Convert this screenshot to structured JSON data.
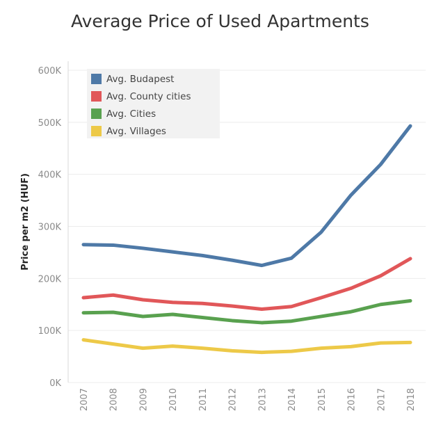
{
  "chart_data": {
    "type": "line",
    "title": "Average Price of Used Apartments",
    "xlabel": "",
    "ylabel": "Price per m2 (HUF)",
    "categories": [
      "2007",
      "2008",
      "2009",
      "2010",
      "2011",
      "2012",
      "2013",
      "2014",
      "2015",
      "2016",
      "2017",
      "2018"
    ],
    "ylim": [
      0,
      600000
    ],
    "yticks": [
      0,
      100000,
      200000,
      300000,
      400000,
      500000,
      600000
    ],
    "ytick_labels": [
      "0K",
      "100K",
      "200K",
      "300K",
      "400K",
      "500K",
      "600K"
    ],
    "grid": "horizontal",
    "legend_position": "top-left",
    "series": [
      {
        "name": "Avg. Budapest",
        "color": "#4e79a7",
        "values": [
          265000,
          264000,
          258000,
          251000,
          244000,
          235000,
          225000,
          239000,
          289000,
          360000,
          419000,
          493000
        ]
      },
      {
        "name": "Avg. County cities",
        "color": "#e15759",
        "values": [
          163000,
          168000,
          159000,
          154000,
          152000,
          147000,
          141000,
          146000,
          163000,
          181000,
          205000,
          238000
        ]
      },
      {
        "name": "Avg. Cities",
        "color": "#59a14f",
        "values": [
          134000,
          135000,
          127000,
          131000,
          125000,
          119000,
          115000,
          118000,
          127000,
          136000,
          150000,
          157000
        ]
      },
      {
        "name": "Avg. Villages",
        "color": "#edc948",
        "values": [
          82000,
          74000,
          66000,
          70000,
          66000,
          61000,
          58000,
          60000,
          66000,
          69000,
          76000,
          77000
        ]
      }
    ]
  }
}
